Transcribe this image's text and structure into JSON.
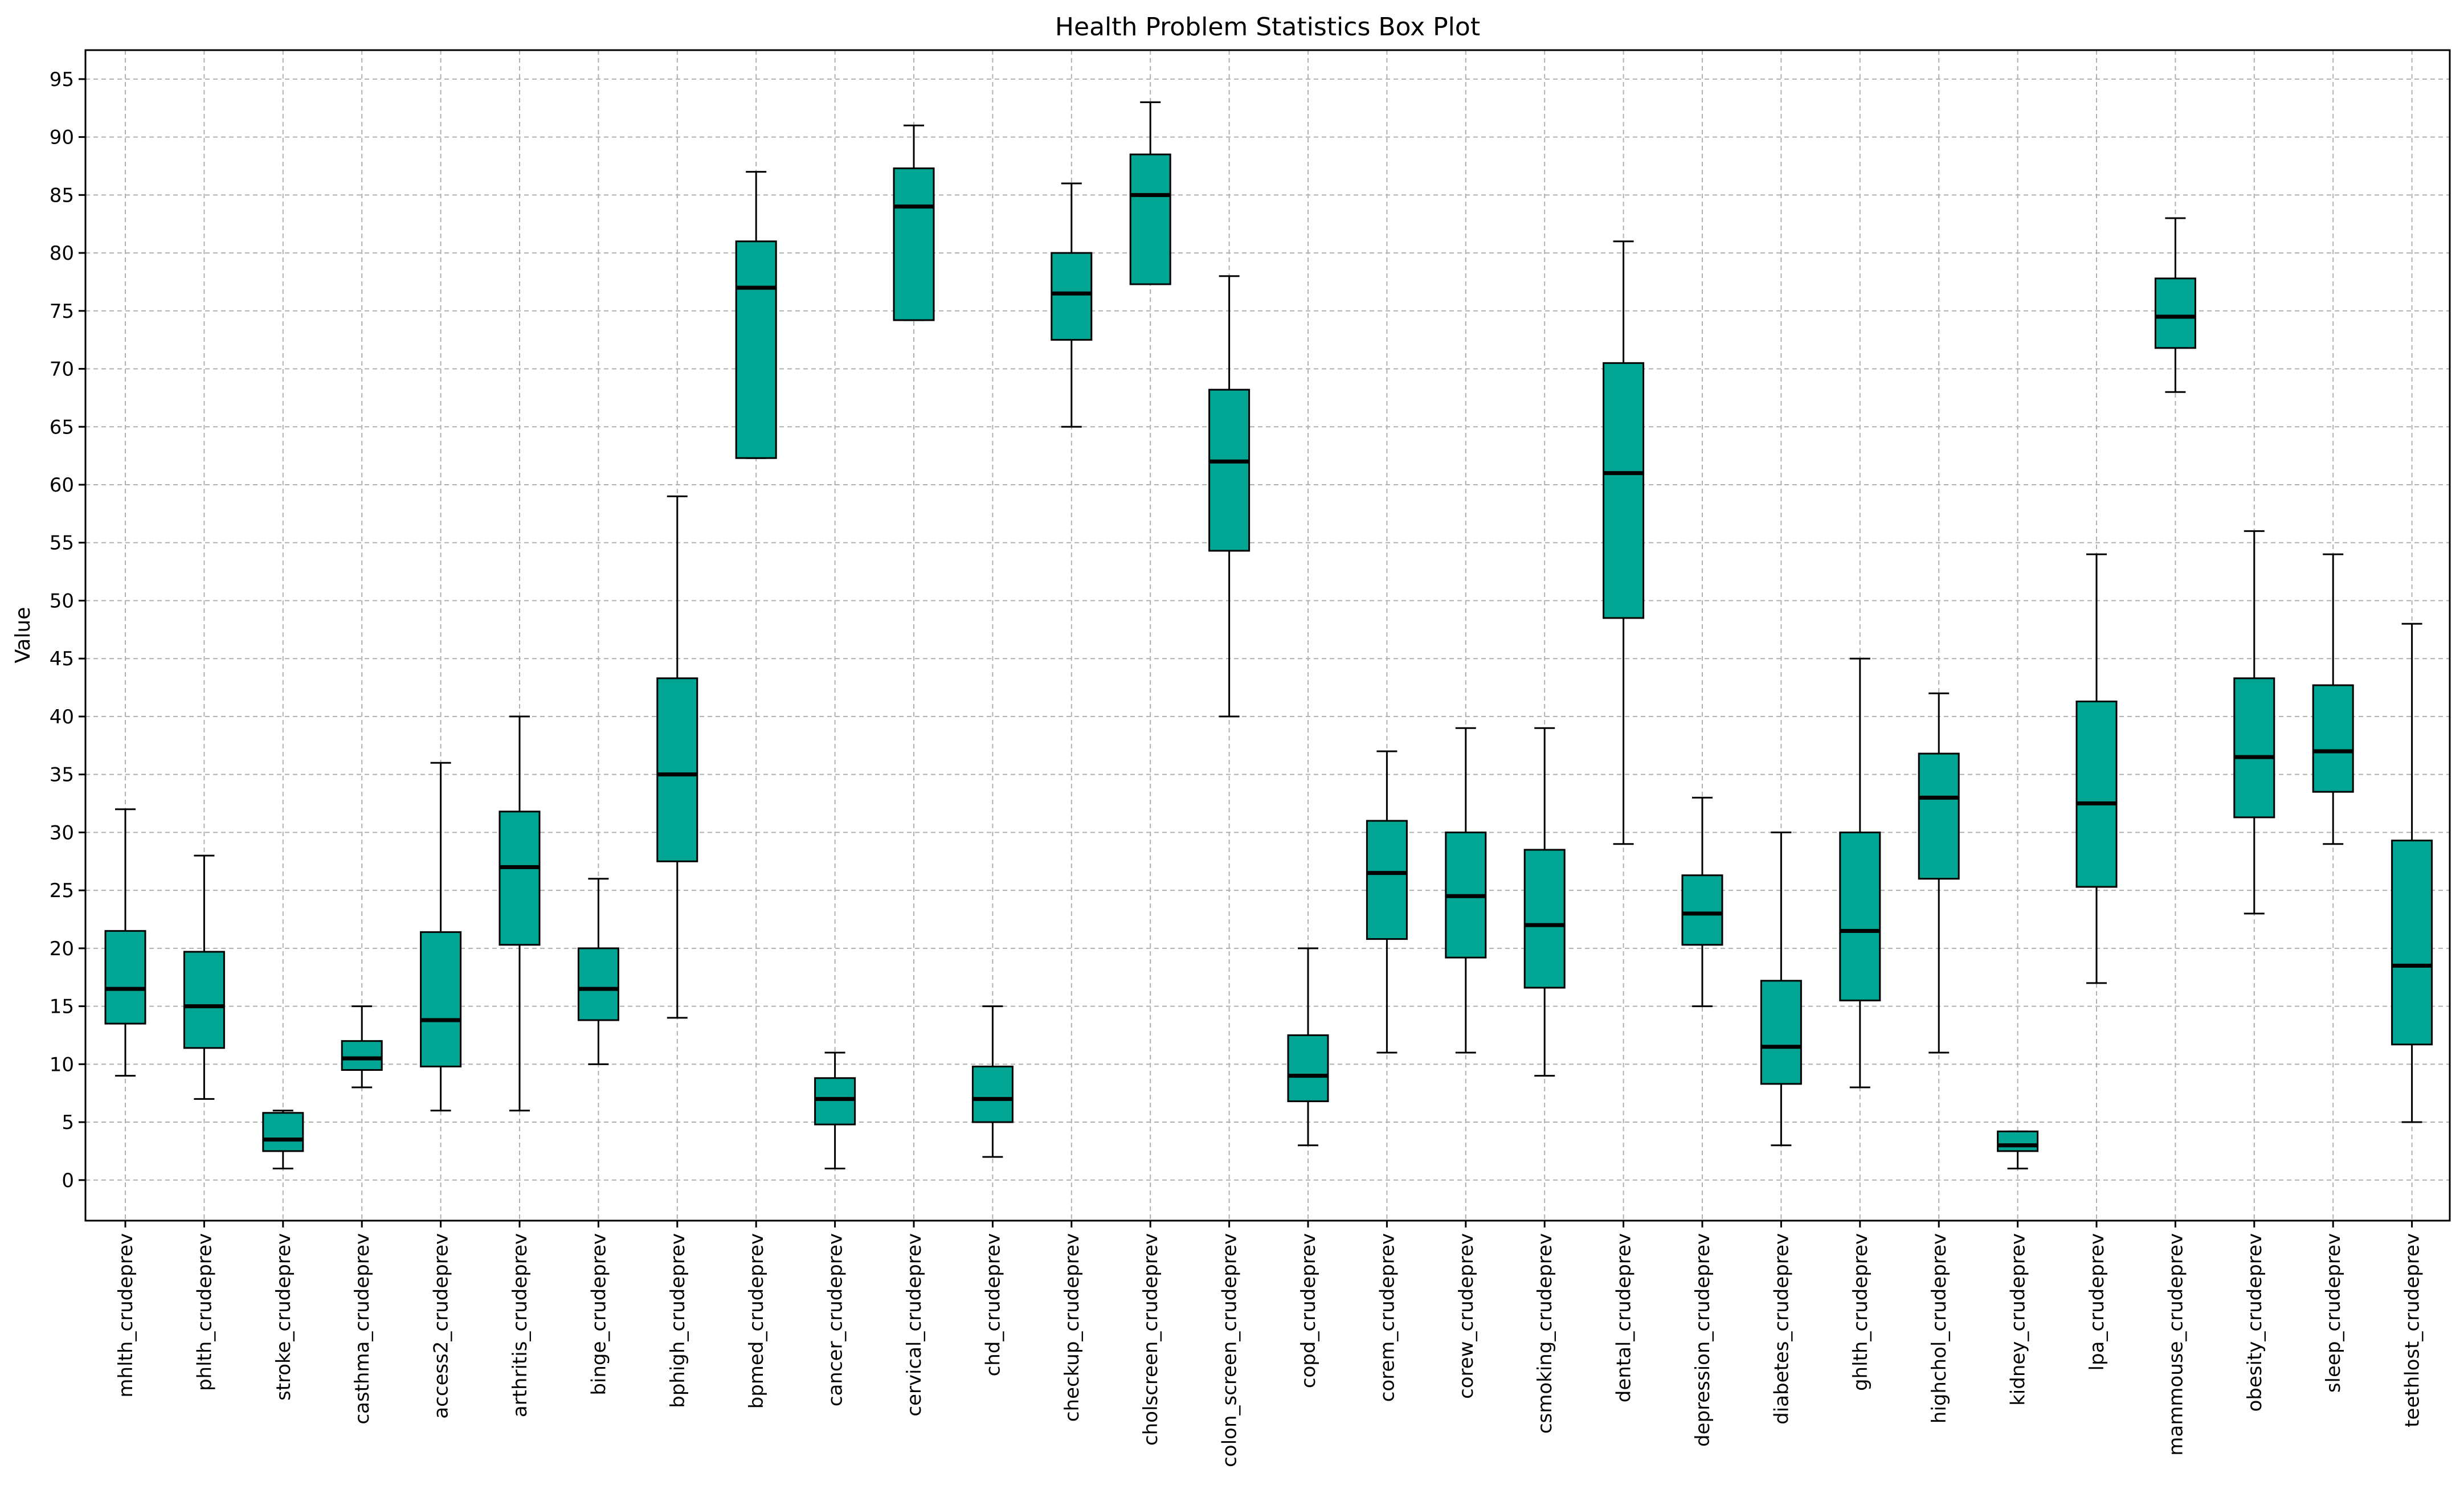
{
  "chart_data": {
    "type": "box",
    "title": "Health Problem Statistics Box Plot",
    "xlabel": "",
    "ylabel": "Value",
    "ylim": [
      -3.5,
      97.5
    ],
    "yticks": [
      0,
      5,
      10,
      15,
      20,
      25,
      30,
      35,
      40,
      45,
      50,
      55,
      60,
      65,
      70,
      75,
      80,
      85,
      90,
      95
    ],
    "grid": true,
    "box_color": "#00a693",
    "categories": [
      "mhlth_crudeprev",
      "phlth_crudeprev",
      "stroke_crudeprev",
      "casthma_crudeprev",
      "access2_crudeprev",
      "arthritis_crudeprev",
      "binge_crudeprev",
      "bphigh_crudeprev",
      "bpmed_crudeprev",
      "cancer_crudeprev",
      "cervical_crudeprev",
      "chd_crudeprev",
      "checkup_crudeprev",
      "cholscreen_crudeprev",
      "colon_screen_crudeprev",
      "copd_crudeprev",
      "corem_crudeprev",
      "corew_crudeprev",
      "csmoking_crudeprev",
      "dental_crudeprev",
      "depression_crudeprev",
      "diabetes_crudeprev",
      "ghlth_crudeprev",
      "highchol_crudeprev",
      "kidney_crudeprev",
      "lpa_crudeprev",
      "mammouse_crudeprev",
      "obesity_crudeprev",
      "sleep_crudeprev",
      "teethlost_crudeprev"
    ],
    "boxes": [
      {
        "whislo": 9,
        "q1": 13.5,
        "med": 16.5,
        "q3": 21.5,
        "whishi": 32
      },
      {
        "whislo": 7,
        "q1": 11.4,
        "med": 15,
        "q3": 19.7,
        "whishi": 28
      },
      {
        "whislo": 1,
        "q1": 2.5,
        "med": 3.5,
        "q3": 5.8,
        "whishi": 6
      },
      {
        "whislo": 8,
        "q1": 9.5,
        "med": 10.5,
        "q3": 12,
        "whishi": 15
      },
      {
        "whislo": 6,
        "q1": 9.8,
        "med": 13.8,
        "q3": 21.4,
        "whishi": 36
      },
      {
        "whislo": 6,
        "q1": 20.3,
        "med": 27,
        "q3": 31.8,
        "whishi": 40
      },
      {
        "whislo": 10,
        "q1": 13.8,
        "med": 16.5,
        "q3": 20,
        "whishi": 26
      },
      {
        "whislo": 14,
        "q1": 27.5,
        "med": 35,
        "q3": 43.3,
        "whishi": 59
      },
      {
        "whislo": 62.3,
        "q1": 62.3,
        "med": 77,
        "q3": 81,
        "whishi": 87
      },
      {
        "whislo": 1,
        "q1": 4.8,
        "med": 7,
        "q3": 8.8,
        "whishi": 11
      },
      {
        "whislo": 74.2,
        "q1": 74.2,
        "med": 84,
        "q3": 87.3,
        "whishi": 91
      },
      {
        "whislo": 2,
        "q1": 5,
        "med": 7,
        "q3": 9.8,
        "whishi": 15
      },
      {
        "whislo": 65,
        "q1": 72.5,
        "med": 76.5,
        "q3": 80,
        "whishi": 86
      },
      {
        "whislo": 77.3,
        "q1": 77.3,
        "med": 85,
        "q3": 88.5,
        "whishi": 93
      },
      {
        "whislo": 40,
        "q1": 54.3,
        "med": 62,
        "q3": 68.2,
        "whishi": 78
      },
      {
        "whislo": 3,
        "q1": 6.8,
        "med": 9,
        "q3": 12.5,
        "whishi": 20
      },
      {
        "whislo": 11,
        "q1": 20.8,
        "med": 26.5,
        "q3": 31,
        "whishi": 37
      },
      {
        "whislo": 11,
        "q1": 19.2,
        "med": 24.5,
        "q3": 30,
        "whishi": 39
      },
      {
        "whislo": 9,
        "q1": 16.6,
        "med": 22,
        "q3": 28.5,
        "whishi": 39
      },
      {
        "whislo": 29,
        "q1": 48.5,
        "med": 61,
        "q3": 70.5,
        "whishi": 81
      },
      {
        "whislo": 15,
        "q1": 20.3,
        "med": 23,
        "q3": 26.3,
        "whishi": 33
      },
      {
        "whislo": 3,
        "q1": 8.3,
        "med": 11.5,
        "q3": 17.2,
        "whishi": 30
      },
      {
        "whislo": 8,
        "q1": 15.5,
        "med": 21.5,
        "q3": 30,
        "whishi": 45
      },
      {
        "whislo": 11,
        "q1": 26,
        "med": 33,
        "q3": 36.8,
        "whishi": 42
      },
      {
        "whislo": 1,
        "q1": 2.5,
        "med": 3,
        "q3": 4.2,
        "whishi": 4.2
      },
      {
        "whislo": 17,
        "q1": 25.3,
        "med": 32.5,
        "q3": 41.3,
        "whishi": 54
      },
      {
        "whislo": 68,
        "q1": 71.8,
        "med": 74.5,
        "q3": 77.8,
        "whishi": 83
      },
      {
        "whislo": 23,
        "q1": 31.3,
        "med": 36.5,
        "q3": 43.3,
        "whishi": 56
      },
      {
        "whislo": 29,
        "q1": 33.5,
        "med": 37,
        "q3": 42.7,
        "whishi": 54
      },
      {
        "whislo": 5,
        "q1": 11.7,
        "med": 18.5,
        "q3": 29.3,
        "whishi": 48
      }
    ]
  }
}
